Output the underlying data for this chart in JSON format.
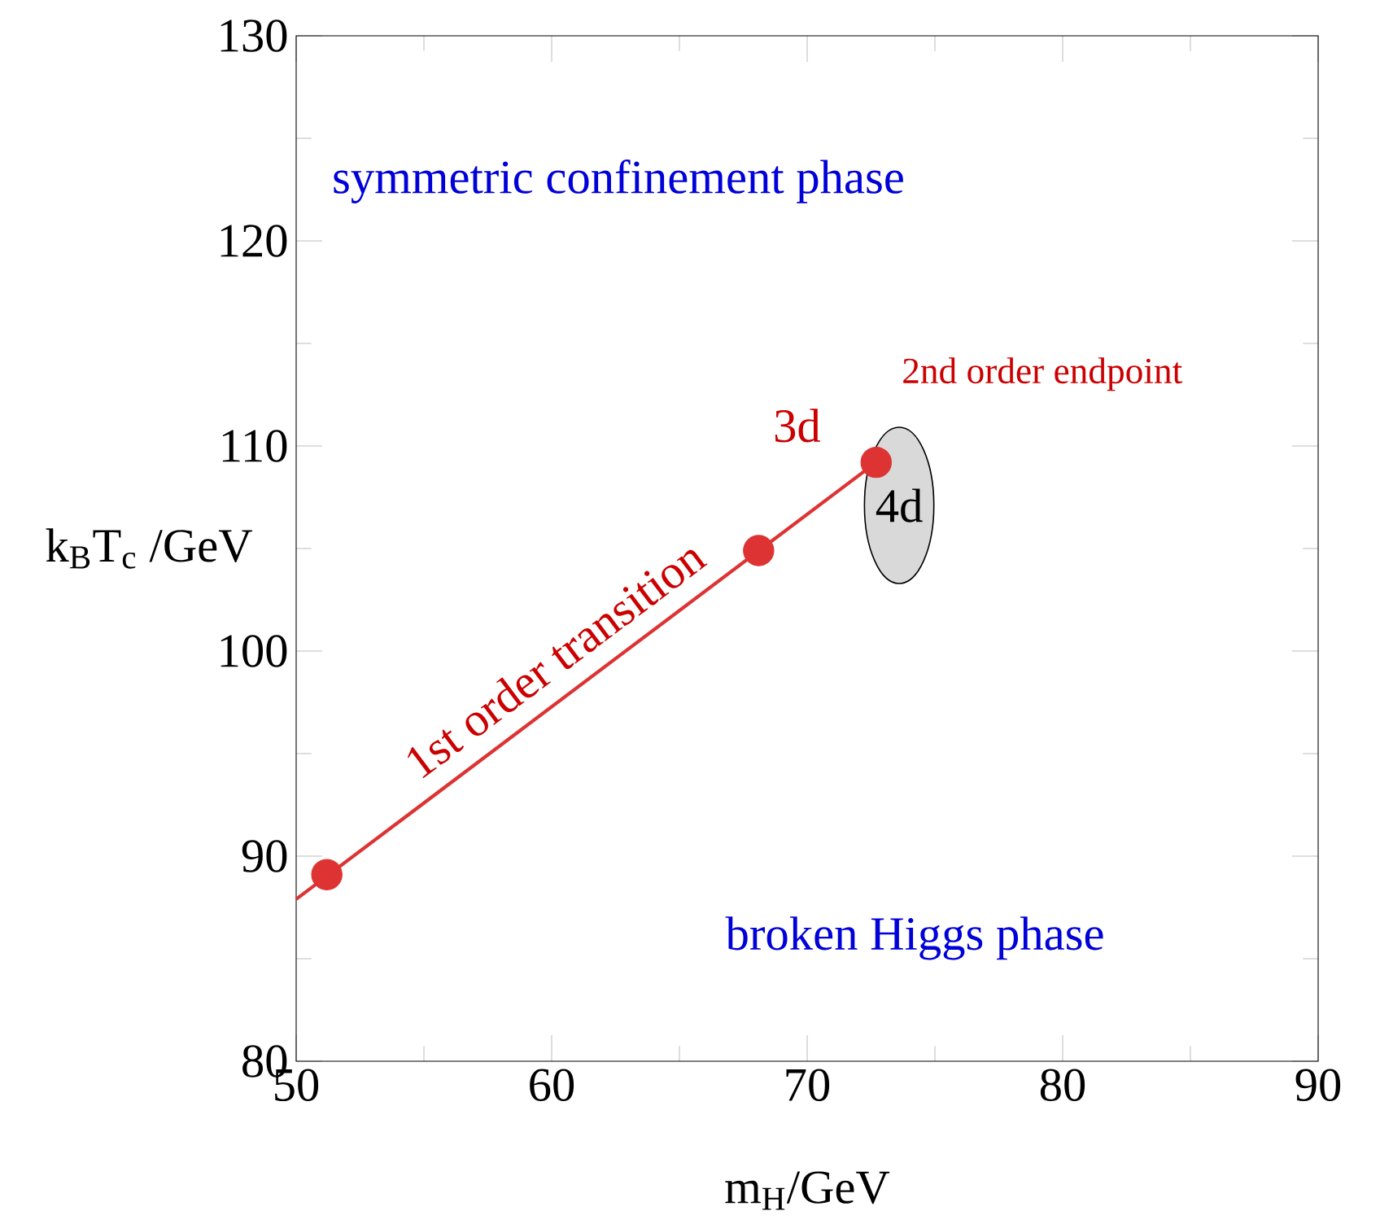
{
  "chart_data": {
    "type": "scatter",
    "xlabel": "m$_{H}$/GeV",
    "ylabel": "k$_{B}$T$_{c}$ /GeV",
    "xlim": [
      50,
      90
    ],
    "ylim": [
      80,
      130
    ],
    "xticks": [
      50,
      60,
      70,
      80,
      90
    ],
    "yticks": [
      80,
      90,
      100,
      110,
      120,
      130
    ],
    "grid": false,
    "series": [
      {
        "type": "line",
        "color": "#dd3333",
        "x": [
          50,
          72.7
        ],
        "values": [
          87.9,
          109.2
        ],
        "marker": "none"
      },
      {
        "color": "#dd3333",
        "x": [
          51.2,
          68.1,
          72.7
        ],
        "values": [
          89.1,
          104.9,
          109.2
        ],
        "marker": "circle"
      }
    ],
    "annotations": [
      "symmetric confinement phase",
      "broken Higgs phase",
      "1st order transition",
      "3d",
      "2nd order endpoint",
      "4d"
    ]
  }
}
